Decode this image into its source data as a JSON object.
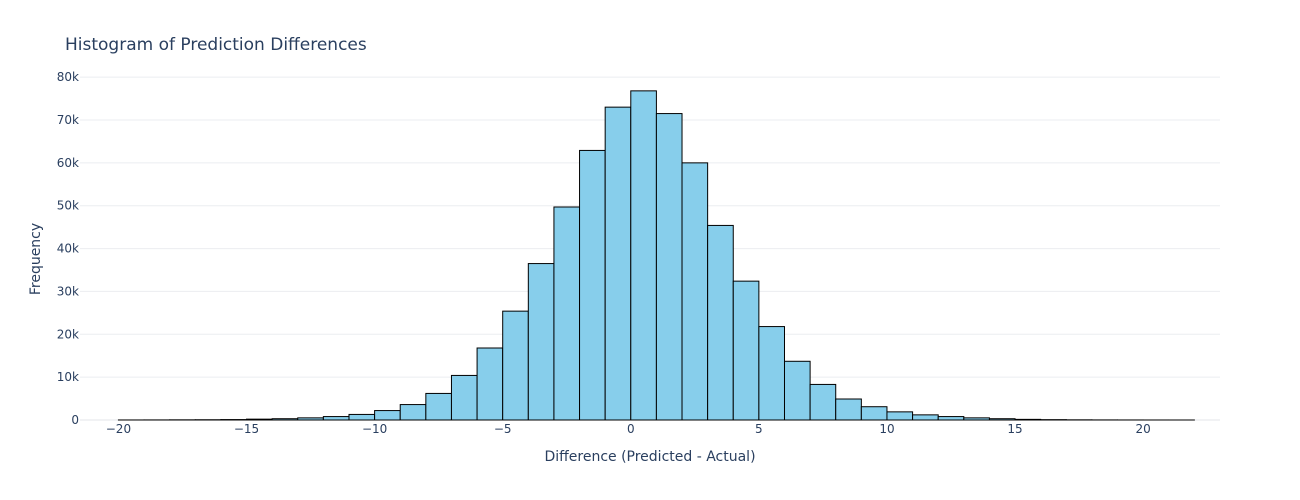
{
  "chart_data": {
    "type": "bar",
    "title": "Histogram of Prediction Differences",
    "xlabel": "Difference (Predicted - Actual)",
    "ylabel": "Frequency",
    "xlim": [
      -21.5,
      23
    ],
    "ylim": [
      0,
      84000
    ],
    "x_ticks": [
      -20,
      -15,
      -10,
      -5,
      0,
      5,
      10,
      15,
      20
    ],
    "x_tick_labels": [
      "−20",
      "−15",
      "−10",
      "−5",
      "0",
      "5",
      "10",
      "15",
      "20"
    ],
    "y_ticks": [
      0,
      10000,
      20000,
      30000,
      40000,
      50000,
      60000,
      70000,
      80000
    ],
    "y_tick_labels": [
      "0",
      "10k",
      "20k",
      "30k",
      "40k",
      "50k",
      "60k",
      "70k",
      "80k"
    ],
    "grid": true,
    "bar_color": "#87ceeb",
    "bar_outline": "#000000",
    "bins": [
      {
        "x0": -20,
        "x1": -19,
        "value": 10
      },
      {
        "x0": -19,
        "x1": -18,
        "value": 20
      },
      {
        "x0": -18,
        "x1": -17,
        "value": 40
      },
      {
        "x0": -17,
        "x1": -16,
        "value": 60
      },
      {
        "x0": -16,
        "x1": -15,
        "value": 100
      },
      {
        "x0": -15,
        "x1": -14,
        "value": 200
      },
      {
        "x0": -14,
        "x1": -13,
        "value": 300
      },
      {
        "x0": -13,
        "x1": -12,
        "value": 500
      },
      {
        "x0": -12,
        "x1": -11,
        "value": 800
      },
      {
        "x0": -11,
        "x1": -10,
        "value": 1300
      },
      {
        "x0": -10,
        "x1": -9,
        "value": 2200
      },
      {
        "x0": -9,
        "x1": -8,
        "value": 3600
      },
      {
        "x0": -8,
        "x1": -7,
        "value": 6200
      },
      {
        "x0": -7,
        "x1": -6,
        "value": 10400
      },
      {
        "x0": -6,
        "x1": -5,
        "value": 16800
      },
      {
        "x0": -5,
        "x1": -4,
        "value": 25400
      },
      {
        "x0": -4,
        "x1": -3,
        "value": 36500
      },
      {
        "x0": -3,
        "x1": -2,
        "value": 49700
      },
      {
        "x0": -2,
        "x1": -1,
        "value": 62900
      },
      {
        "x0": -1,
        "x1": 0,
        "value": 73000
      },
      {
        "x0": 0,
        "x1": 1,
        "value": 76800
      },
      {
        "x0": 1,
        "x1": 2,
        "value": 71500
      },
      {
        "x0": 2,
        "x1": 3,
        "value": 60000
      },
      {
        "x0": 3,
        "x1": 4,
        "value": 45400
      },
      {
        "x0": 4,
        "x1": 5,
        "value": 32400
      },
      {
        "x0": 5,
        "x1": 6,
        "value": 21800
      },
      {
        "x0": 6,
        "x1": 7,
        "value": 13700
      },
      {
        "x0": 7,
        "x1": 8,
        "value": 8300
      },
      {
        "x0": 8,
        "x1": 9,
        "value": 4900
      },
      {
        "x0": 9,
        "x1": 10,
        "value": 3100
      },
      {
        "x0": 10,
        "x1": 11,
        "value": 1900
      },
      {
        "x0": 11,
        "x1": 12,
        "value": 1200
      },
      {
        "x0": 12,
        "x1": 13,
        "value": 800
      },
      {
        "x0": 13,
        "x1": 14,
        "value": 500
      },
      {
        "x0": 14,
        "x1": 15,
        "value": 300
      },
      {
        "x0": 15,
        "x1": 16,
        "value": 150
      },
      {
        "x0": 16,
        "x1": 17,
        "value": 80
      },
      {
        "x0": 17,
        "x1": 18,
        "value": 40
      },
      {
        "x0": 18,
        "x1": 19,
        "value": 20
      },
      {
        "x0": 19,
        "x1": 20,
        "value": 10
      },
      {
        "x0": 20,
        "x1": 21,
        "value": 5
      },
      {
        "x0": 21,
        "x1": 22,
        "value": 2
      }
    ]
  }
}
